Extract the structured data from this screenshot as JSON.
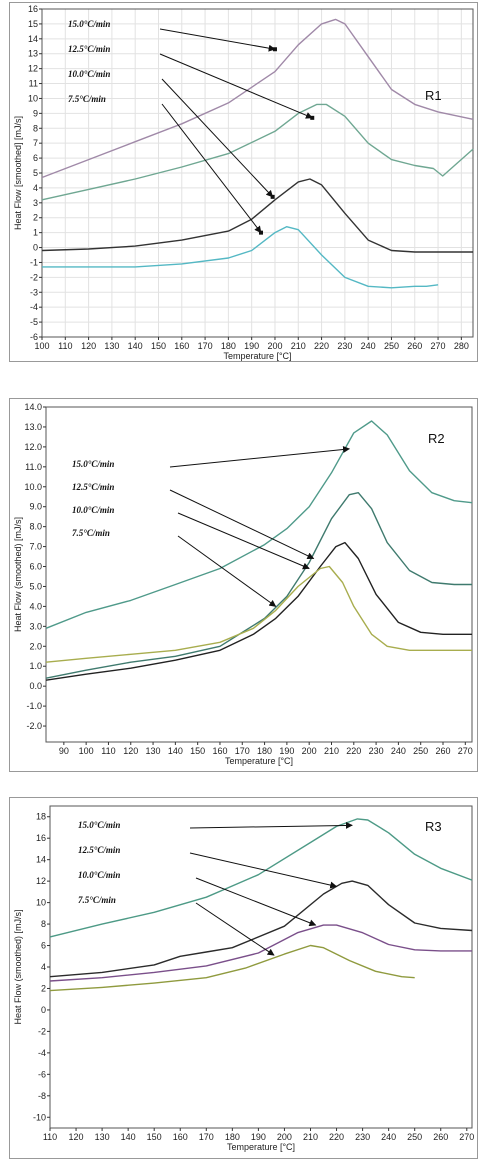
{
  "chart_data": [
    {
      "type": "line",
      "title": "R1",
      "xlabel": "Temperature [°C]",
      "ylabel": "Heat Flow [smoothed] [mJ/s]",
      "xlim": [
        100,
        285
      ],
      "ylim": [
        -6,
        16
      ],
      "xticks": [
        100,
        110,
        120,
        130,
        140,
        150,
        160,
        170,
        180,
        190,
        200,
        210,
        220,
        230,
        240,
        250,
        260,
        270,
        280
      ],
      "yticks": [
        -6,
        -5,
        -4,
        -3,
        -2,
        -1,
        0,
        1,
        2,
        3,
        4,
        5,
        6,
        7,
        8,
        9,
        10,
        11,
        12,
        13,
        14,
        15,
        16
      ],
      "grid": true,
      "legend": [
        "15.0°C/min",
        "12.5°C/min",
        "10.0°C/min",
        "7.5°C/min"
      ],
      "series": [
        {
          "name": "15.0°C/min",
          "color": "#a089a8",
          "x": [
            100,
            120,
            140,
            160,
            180,
            200,
            210,
            220,
            226,
            230,
            240,
            250,
            260,
            270,
            285
          ],
          "y": [
            4.7,
            5.9,
            7.1,
            8.3,
            9.7,
            11.8,
            13.6,
            15.0,
            15.3,
            15.0,
            12.8,
            10.6,
            9.6,
            9.1,
            8.6
          ]
        },
        {
          "name": "12.5°C/min",
          "color": "#6fa792",
          "x": [
            100,
            120,
            140,
            160,
            180,
            200,
            210,
            218,
            222,
            230,
            240,
            250,
            260,
            268,
            272,
            285
          ],
          "y": [
            3.2,
            3.9,
            4.6,
            5.4,
            6.3,
            7.8,
            9.0,
            9.6,
            9.6,
            8.8,
            7.0,
            5.9,
            5.5,
            5.3,
            4.8,
            6.6
          ]
        },
        {
          "name": "10.0°C/min",
          "color": "#333333",
          "x": [
            100,
            120,
            140,
            160,
            180,
            190,
            200,
            210,
            215,
            220,
            230,
            240,
            250,
            260,
            270,
            285
          ],
          "y": [
            -0.2,
            -0.1,
            0.1,
            0.5,
            1.1,
            1.9,
            3.2,
            4.4,
            4.6,
            4.2,
            2.3,
            0.5,
            -0.2,
            -0.3,
            -0.3,
            -0.3
          ]
        },
        {
          "name": "7.5°C/min",
          "color": "#54b8c4",
          "x": [
            100,
            120,
            140,
            160,
            180,
            190,
            200,
            205,
            210,
            220,
            230,
            240,
            250,
            260,
            265,
            270
          ],
          "y": [
            -1.3,
            -1.3,
            -1.3,
            -1.1,
            -0.7,
            -0.2,
            1.0,
            1.4,
            1.2,
            -0.5,
            -2.0,
            -2.6,
            -2.7,
            -2.6,
            -2.6,
            -2.5
          ]
        }
      ],
      "arrows": [
        {
          "from": "15.0°C/min",
          "to": [
            200,
            13.3
          ]
        },
        {
          "from": "12.5°C/min",
          "to": [
            216,
            8.7
          ]
        },
        {
          "from": "10.0°C/min",
          "to": [
            199,
            3.4
          ]
        },
        {
          "from": "7.5°C/min",
          "to": [
            194,
            1.0
          ]
        }
      ]
    },
    {
      "type": "line",
      "title": "R2",
      "xlabel": "Temperature [°C]",
      "ylabel": "Heat Flow (smoothed) [mJ/s]",
      "xlim": [
        82,
        273
      ],
      "ylim": [
        -2.8,
        14
      ],
      "xticks": [
        90,
        100,
        110,
        120,
        130,
        140,
        150,
        160,
        170,
        180,
        190,
        200,
        210,
        220,
        230,
        240,
        250,
        260,
        270
      ],
      "yticks": [
        -2.0,
        -1.0,
        0.0,
        1.0,
        2.0,
        3.0,
        4.0,
        5.0,
        6.0,
        7.0,
        8.0,
        9.0,
        10.0,
        11.0,
        12.0,
        13.0,
        14.0
      ],
      "ytickfmt": 1,
      "grid": false,
      "legend": [
        "15.0°C/min",
        "12.5°C/min",
        "10.0°C/min",
        "7.5°C/min"
      ],
      "series": [
        {
          "name": "15.0°C/min",
          "color": "#4f9a8a",
          "x": [
            82,
            100,
            120,
            140,
            160,
            180,
            190,
            200,
            210,
            220,
            228,
            235,
            245,
            255,
            265,
            273
          ],
          "y": [
            2.9,
            3.7,
            4.3,
            5.1,
            5.9,
            7.1,
            7.9,
            9.0,
            10.7,
            12.7,
            13.3,
            12.6,
            10.8,
            9.7,
            9.3,
            9.2
          ]
        },
        {
          "name": "12.5°C/min",
          "color": "#3f7a6e",
          "x": [
            82,
            100,
            120,
            140,
            160,
            180,
            190,
            200,
            210,
            218,
            222,
            228,
            235,
            245,
            255,
            265,
            273
          ],
          "y": [
            0.4,
            0.8,
            1.2,
            1.5,
            2.0,
            3.4,
            4.5,
            6.2,
            8.4,
            9.6,
            9.7,
            8.9,
            7.2,
            5.8,
            5.2,
            5.1,
            5.1
          ]
        },
        {
          "name": "10.0°C/min",
          "color": "#222222",
          "x": [
            82,
            100,
            120,
            140,
            160,
            175,
            185,
            195,
            205,
            212,
            216,
            222,
            230,
            240,
            250,
            260,
            273
          ],
          "y": [
            0.3,
            0.6,
            0.9,
            1.3,
            1.8,
            2.6,
            3.4,
            4.5,
            6.0,
            7.0,
            7.2,
            6.4,
            4.6,
            3.2,
            2.7,
            2.6,
            2.6
          ]
        },
        {
          "name": "7.5°C/min",
          "color": "#a8ad4e",
          "x": [
            82,
            100,
            120,
            140,
            160,
            175,
            185,
            195,
            205,
            209,
            215,
            220,
            228,
            235,
            245,
            260,
            273
          ],
          "y": [
            1.2,
            1.4,
            1.6,
            1.8,
            2.2,
            2.9,
            3.8,
            5.0,
            5.9,
            6.0,
            5.2,
            4.0,
            2.6,
            2.0,
            1.8,
            1.8,
            1.8
          ]
        }
      ],
      "arrows": [
        {
          "from": "15.0°C/min",
          "to": [
            218,
            11.9
          ]
        },
        {
          "from": "12.5°C/min",
          "to": [
            202,
            6.4
          ]
        },
        {
          "from": "10.0°C/min",
          "to": [
            200,
            5.9
          ]
        },
        {
          "from": "7.5°C/min",
          "to": [
            185,
            4.0
          ]
        }
      ]
    },
    {
      "type": "line",
      "title": "R3",
      "xlabel": "Temperature [°C]",
      "ylabel": "Heat Flow (smoothed) [mJ/s]",
      "xlim": [
        110,
        272
      ],
      "ylim": [
        -11,
        19
      ],
      "xticks": [
        110,
        120,
        130,
        140,
        150,
        160,
        170,
        180,
        190,
        200,
        210,
        220,
        230,
        240,
        250,
        260,
        270
      ],
      "yticks": [
        -10,
        -8,
        -6,
        -4,
        -2,
        0,
        2,
        4,
        6,
        8,
        10,
        12,
        14,
        16,
        18
      ],
      "grid": false,
      "legend": [
        "15.0°C/min",
        "12.5°C/min",
        "10.0°C/min",
        "7.5°C/min"
      ],
      "series": [
        {
          "name": "15.0°C/min",
          "color": "#4d9a86",
          "x": [
            110,
            130,
            150,
            170,
            190,
            210,
            220,
            228,
            232,
            240,
            250,
            260,
            272
          ],
          "y": [
            6.8,
            8.0,
            9.1,
            10.5,
            12.6,
            15.6,
            17.1,
            17.8,
            17.7,
            16.5,
            14.5,
            13.2,
            12.1
          ]
        },
        {
          "name": "12.5°C/min",
          "color": "#2b2b2b",
          "x": [
            110,
            130,
            150,
            160,
            170,
            180,
            200,
            215,
            222,
            226,
            232,
            240,
            250,
            260,
            272
          ],
          "y": [
            3.1,
            3.5,
            4.2,
            5.0,
            5.4,
            5.8,
            7.8,
            10.8,
            11.8,
            12.0,
            11.6,
            9.8,
            8.1,
            7.6,
            7.4
          ]
        },
        {
          "name": "10.0°C/min",
          "color": "#7a4f8a",
          "x": [
            110,
            130,
            150,
            170,
            190,
            205,
            215,
            220,
            230,
            240,
            250,
            260,
            272
          ],
          "y": [
            2.7,
            3.0,
            3.5,
            4.1,
            5.3,
            7.2,
            7.9,
            7.9,
            7.2,
            6.1,
            5.6,
            5.5,
            5.5
          ]
        },
        {
          "name": "7.5°C/min",
          "color": "#8f9a3e",
          "x": [
            110,
            130,
            150,
            170,
            185,
            200,
            210,
            215,
            225,
            235,
            245,
            250
          ],
          "y": [
            1.8,
            2.1,
            2.5,
            3.0,
            3.9,
            5.2,
            6.0,
            5.8,
            4.6,
            3.6,
            3.1,
            3.0
          ]
        }
      ],
      "arrows": [
        {
          "from": "15.0°C/min",
          "to": [
            226,
            17.2
          ]
        },
        {
          "from": "12.5°C/min",
          "to": [
            220,
            11.5
          ]
        },
        {
          "from": "10.0°C/min",
          "to": [
            212,
            7.9
          ]
        },
        {
          "from": "7.5°C/min",
          "to": [
            196,
            5.1
          ]
        }
      ]
    }
  ]
}
